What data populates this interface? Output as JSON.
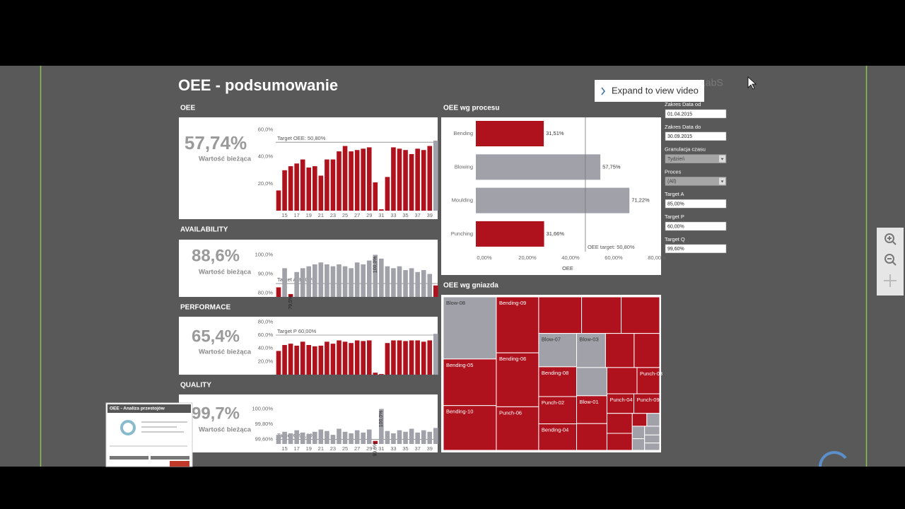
{
  "title": "OEE - podsumowanie",
  "popup": "Expand to view video",
  "logo": "LabS",
  "thumbnail_title": "OEE - Analiza przestojów",
  "filters": [
    {
      "label": "Zakres Data od",
      "value": "01.04.2015"
    },
    {
      "label": "Zakres Data do",
      "value": "30.09.2015"
    },
    {
      "label": "Granulacja czasu",
      "value": "Tydzień",
      "dropdown": true
    },
    {
      "label": "Proces",
      "value": "(All)",
      "dropdown": true
    },
    {
      "label": "Target A",
      "value": "85,00%"
    },
    {
      "label": "Target P",
      "value": "60,00%"
    },
    {
      "label": "Target Q",
      "value": "99,60%"
    }
  ],
  "chart_data": [
    {
      "type": "bar",
      "title": "OEE",
      "kpi": "57,74%",
      "kpi_caption": "Wartość bieżąca",
      "categories": [
        null,
        "15",
        null,
        "17",
        null,
        "19",
        null,
        "21",
        null,
        "23",
        null,
        "25",
        null,
        "27",
        null,
        "29",
        null,
        "31",
        null,
        "33",
        null,
        "35",
        null,
        "37",
        null,
        "39",
        null
      ],
      "values": [
        15,
        30,
        33,
        35,
        38,
        32,
        33,
        26,
        38,
        38,
        44,
        48,
        44,
        45,
        46,
        47,
        21,
        1,
        25,
        47,
        46,
        45,
        42,
        46,
        45,
        48,
        52
      ],
      "ylim": [
        0,
        64
      ],
      "yticks": [
        {
          "value": 20,
          "label": "20,0%"
        },
        {
          "value": 40,
          "label": "40,0%"
        },
        {
          "value": 60,
          "label": "60,0%"
        }
      ],
      "target": 50.8,
      "target_label": "Target OEE: 50,80%",
      "color_below_target": "#b0121d",
      "color_on_target": "#a1a1aa"
    },
    {
      "type": "bar",
      "title": "AVAILABILITY",
      "kpi": "88,6%",
      "kpi_caption": "Wartość bieżąca",
      "values": [
        83,
        93,
        79.5,
        91,
        93,
        94,
        95,
        96,
        95,
        94,
        95,
        94,
        93,
        96,
        95,
        97,
        100,
        98,
        94,
        93,
        94,
        92,
        93,
        91,
        92,
        90,
        84
      ],
      "value_labels": [
        null,
        null,
        "79,5%",
        null,
        null,
        null,
        null,
        null,
        null,
        null,
        null,
        null,
        null,
        null,
        null,
        null,
        "100,0%",
        null,
        null,
        null,
        null,
        null,
        null,
        null,
        null,
        null,
        null
      ],
      "ylim": [
        78,
        102
      ],
      "yticks": [
        {
          "value": 80,
          "label": "80,0%"
        },
        {
          "value": 90,
          "label": "90,0%"
        },
        {
          "value": 100,
          "label": "100,0%"
        }
      ],
      "target": 85,
      "target_label": "Target A 85,00%",
      "color_below_target": "#b0121d",
      "color_on_target": "#a1a1aa"
    },
    {
      "type": "bar",
      "title": "PERFORMACE",
      "kpi": "65,4%",
      "kpi_caption": "Wartość bieżąca",
      "values": [
        36,
        45,
        47,
        44,
        50,
        45,
        43,
        44,
        50,
        47,
        52,
        50,
        48,
        52,
        51,
        52,
        3,
        1,
        48,
        52,
        52,
        51,
        52,
        52,
        50,
        52,
        62
      ],
      "ylim": [
        0,
        82
      ],
      "yticks": [
        {
          "value": 20,
          "label": "20,0%"
        },
        {
          "value": 40,
          "label": "40,0%"
        },
        {
          "value": 60,
          "label": "60,0%"
        },
        {
          "value": 80,
          "label": "80,0%"
        }
      ],
      "target": 60,
      "target_label": "Target P 60,00%",
      "color_below_target": "#b0121d",
      "color_on_target": "#a1a1aa"
    },
    {
      "type": "bar",
      "title": "QUALITY",
      "kpi": "99,7%",
      "kpi_caption": "Wartość bieżąca",
      "categories": [
        null,
        "15",
        null,
        "17",
        null,
        "19",
        null,
        "21",
        null,
        "23",
        null,
        "25",
        null,
        "27",
        null,
        "29",
        null,
        "31",
        null,
        "33",
        null,
        "35",
        null,
        "37",
        null,
        "39",
        null
      ],
      "values": [
        99.66,
        99.7,
        99.68,
        99.72,
        99.69,
        99.67,
        99.7,
        99.73,
        99.71,
        99.66,
        99.74,
        99.7,
        99.68,
        99.72,
        99.69,
        99.73,
        99.58,
        100.0,
        99.71,
        99.68,
        99.72,
        99.7,
        99.74,
        99.69,
        99.72,
        99.7,
        99.75
      ],
      "value_labels": [
        null,
        null,
        null,
        null,
        null,
        null,
        null,
        null,
        null,
        null,
        null,
        null,
        null,
        null,
        null,
        null,
        "99,6%",
        "100,0%",
        null,
        null,
        null,
        null,
        null,
        null,
        null,
        null,
        null
      ],
      "ylim": [
        99.54,
        100.06
      ],
      "yticks": [
        {
          "value": 99.6,
          "label": "99,60%"
        },
        {
          "value": 99.8,
          "label": "99,80%"
        },
        {
          "value": 100,
          "label": "100,00%"
        }
      ],
      "target": 99.6,
      "target_label": "Target Q 99,60%",
      "color_below_target": "#b0121d",
      "color_on_target": "#a1a1aa"
    },
    {
      "type": "hbar",
      "title": "OEE wg procesu",
      "xlabel": "OEE",
      "categories": [
        "Bending",
        "Blowing",
        "Moulding",
        "Punching"
      ],
      "values": [
        31.51,
        57.75,
        71.22,
        31.66
      ],
      "value_labels": [
        "31,51%",
        "57,75%",
        "71,22%",
        "31,66%"
      ],
      "xlim": [
        0,
        80
      ],
      "xticks": [
        {
          "value": 0,
          "label": "0,00%"
        },
        {
          "value": 20,
          "label": "20,00%"
        },
        {
          "value": 40,
          "label": "40,00%"
        },
        {
          "value": 60,
          "label": "60,00%"
        },
        {
          "value": 80,
          "label": "80,00%"
        }
      ],
      "target": 50.8,
      "target_label": "OEE target: 50,80%",
      "color_below_target": "#b0121d",
      "color_on_target": "#a1a1aa"
    },
    {
      "type": "treemap",
      "title": "OEE wg gniazda",
      "cells": [
        {
          "name": "Blow-08",
          "value": 5984,
          "color": "#a1a1aa"
        },
        {
          "name": "Bending-05",
          "value": 4488,
          "color": "#b0121d"
        },
        {
          "name": "Bending-10",
          "value": 4312,
          "color": "#b0121d"
        },
        {
          "name": "Bending-09",
          "value": 4312,
          "color": "#b0121d"
        },
        {
          "name": "Bending-06",
          "value": 4161,
          "color": "#b0121d"
        },
        {
          "name": "Punch-06",
          "value": 3358,
          "color": "#b0121d"
        },
        {
          "name": null,
          "value": 2847,
          "color": "#b0121d"
        },
        {
          "name": null,
          "value": 2628,
          "color": "#b0121d"
        },
        {
          "name": null,
          "value": 2555,
          "color": "#b0121d"
        },
        {
          "name": "Blow-07",
          "value": 2301,
          "color": "#a1a1aa"
        },
        {
          "name": "Bending-08",
          "value": 2052,
          "color": "#b0121d"
        },
        {
          "name": "Punch-02",
          "value": 1881,
          "color": "#b0121d"
        },
        {
          "name": "Bending-04",
          "value": 1824,
          "color": "#b0121d"
        },
        {
          "name": "Blow-03",
          "value": 1794,
          "color": "#a1a1aa"
        },
        {
          "name": null,
          "value": 1776,
          "color": "#b0121d"
        },
        {
          "name": null,
          "value": 1584,
          "color": "#b0121d"
        },
        {
          "name": null,
          "value": 1558,
          "color": "#a1a1aa"
        },
        {
          "name": "Blow-01",
          "value": 1536,
          "color": "#b0121d"
        },
        {
          "name": null,
          "value": 1476,
          "color": "#b0121d"
        },
        {
          "name": null,
          "value": 1435,
          "color": "#b0121d"
        },
        {
          "name": "Punch-03",
          "value": 1080,
          "color": "#b0121d"
        },
        {
          "name": "Punch-04",
          "value": 960,
          "color": "#b0121d"
        },
        {
          "name": "Punch-09",
          "value": 920,
          "color": "#b0121d"
        },
        {
          "name": null,
          "value": 920,
          "color": "#b0121d"
        },
        {
          "name": null,
          "value": 782,
          "color": "#b0121d"
        },
        {
          "name": null,
          "value": 340,
          "color": "#b0121d"
        },
        {
          "name": null,
          "value": 300,
          "color": "#a1a1aa"
        },
        {
          "name": null,
          "value": 280,
          "color": "#a1a1aa"
        },
        {
          "name": null,
          "value": 260,
          "color": "#a1a1aa"
        },
        {
          "name": null,
          "value": 240,
          "color": "#a1a1aa"
        },
        {
          "name": null,
          "value": 220,
          "color": "#a1a1aa"
        },
        {
          "name": null,
          "value": 200,
          "color": "#a1a1aa"
        }
      ]
    }
  ]
}
